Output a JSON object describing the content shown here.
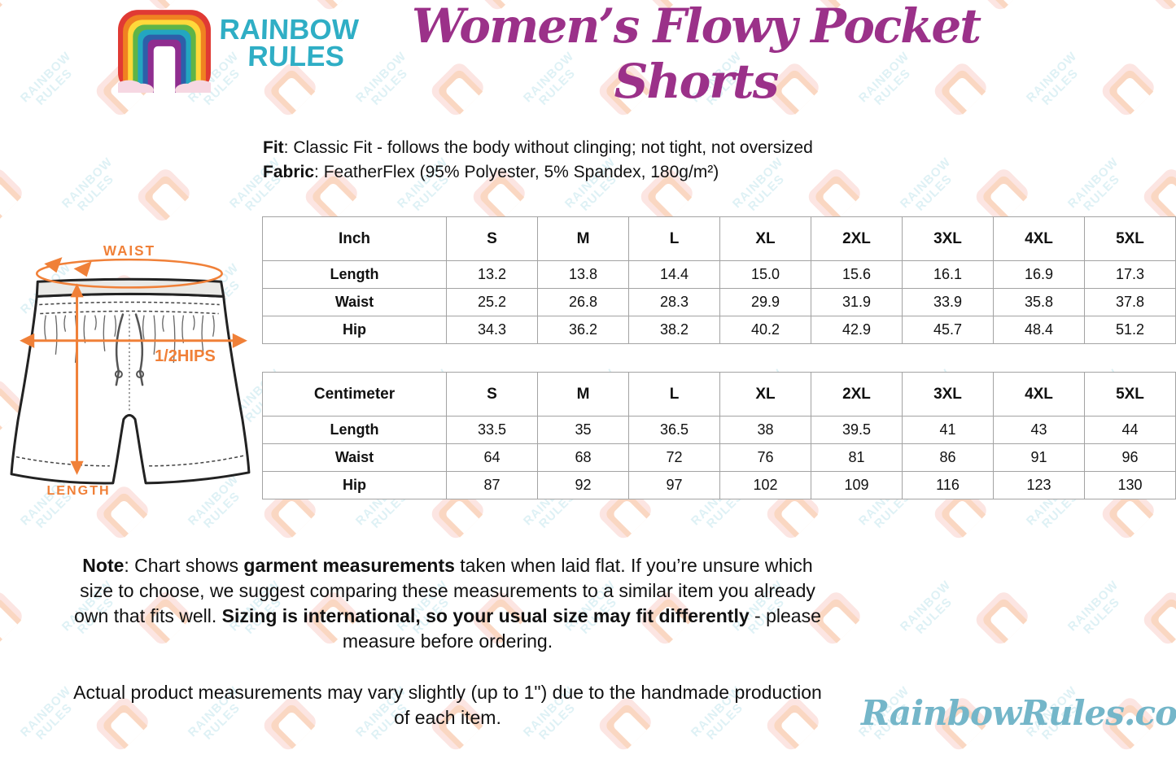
{
  "brand": {
    "name_line1": "RAINBOW",
    "name_line2": "RULES"
  },
  "header": {
    "title": "Women’s Flowy Pocket Shorts"
  },
  "product": {
    "fit": [
      {
        "text": "Fit",
        "bold": true
      },
      {
        "text": ": Classic Fit - follows the body without clinging; not tight, not oversized",
        "bold": false
      }
    ],
    "fabric": [
      {
        "text": "Fabric",
        "bold": true
      },
      {
        "text": ": FeatherFlex (95% Polyester, 5% Spandex, 180g/m²)",
        "bold": false
      }
    ]
  },
  "diagram": {
    "waist_label": "WAIST",
    "hips_label": "1/2HIPS",
    "length_label": "LENGTH"
  },
  "tables": [
    {
      "unit": "Inch",
      "sizes": [
        "S",
        "M",
        "L",
        "XL",
        "2XL",
        "3XL",
        "4XL",
        "5XL"
      ],
      "rows": [
        {
          "label": "Length",
          "values": [
            "13.2",
            "13.8",
            "14.4",
            "15.0",
            "15.6",
            "16.1",
            "16.9",
            "17.3"
          ]
        },
        {
          "label": "Waist",
          "values": [
            "25.2",
            "26.8",
            "28.3",
            "29.9",
            "31.9",
            "33.9",
            "35.8",
            "37.8"
          ]
        },
        {
          "label": "Hip",
          "values": [
            "34.3",
            "36.2",
            "38.2",
            "40.2",
            "42.9",
            "45.7",
            "48.4",
            "51.2"
          ]
        }
      ]
    },
    {
      "unit": "Centimeter",
      "sizes": [
        "S",
        "M",
        "L",
        "XL",
        "2XL",
        "3XL",
        "4XL",
        "5XL"
      ],
      "rows": [
        {
          "label": "Length",
          "values": [
            "33.5",
            "35",
            "36.5",
            "38",
            "39.5",
            "41",
            "43",
            "44"
          ]
        },
        {
          "label": "Waist",
          "values": [
            "64",
            "68",
            "72",
            "76",
            "81",
            "86",
            "91",
            "96"
          ]
        },
        {
          "label": "Hip",
          "values": [
            "87",
            "92",
            "97",
            "102",
            "109",
            "116",
            "123",
            "130"
          ]
        }
      ]
    }
  ],
  "notes": {
    "note1": [
      {
        "text": "Note",
        "bold": true
      },
      {
        "text": ": Chart shows ",
        "bold": false
      },
      {
        "text": "garment measurements",
        "bold": true
      },
      {
        "text": " taken when laid flat. If you’re unsure which size to choose, we suggest comparing these measurements to a similar item you already own that fits well. ",
        "bold": false
      },
      {
        "text": "Sizing is international, so your usual size may fit differently",
        "bold": true
      },
      {
        "text": " - please measure before ordering.",
        "bold": false
      }
    ],
    "note2": "Actual product measurements may vary slightly (up to 1\") due to the handmade production of each item."
  },
  "footer": {
    "site": "RainbowRules.com"
  },
  "watermark": {
    "text_line1": "RAINBOW",
    "text_line2": "RULES"
  },
  "colors": {
    "accent_orange": "#F08038",
    "brand_teal": "#2FAEC5",
    "title_purple": "#9B3189",
    "footer_teal": "#74B6C9",
    "table_border": "#A3A3A3"
  }
}
